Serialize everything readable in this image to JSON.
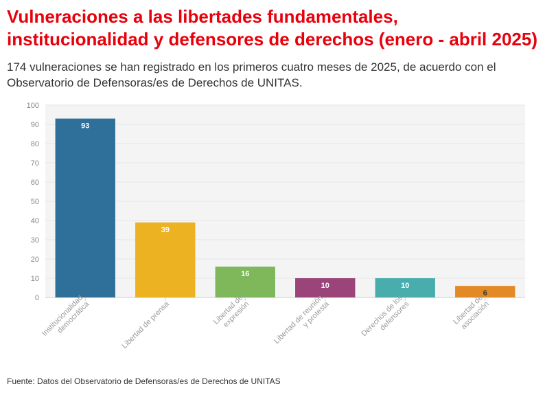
{
  "header": {
    "title": "Vulneraciones a las libertades fundamentales, institucionalidad y defensores de derechos (enero - abril 2025)",
    "subtitle": "174 vulneraciones se han registrado en los primeros cuatro meses de 2025, de acuerdo con el Observatorio de Defensoras/es de Derechos de UNITAS."
  },
  "footer": {
    "source": "Fuente: Datos del Observatorio de Defensoras/es de Derechos de UNITAS"
  },
  "chart_data": {
    "type": "bar",
    "categories": [
      [
        "Institucionalidad",
        "democrática"
      ],
      [
        "Libertad de prensa"
      ],
      [
        "Libertad de",
        "expresión"
      ],
      [
        "Libertad de reunión",
        "y protesta"
      ],
      [
        "Derechos de los",
        "defensores"
      ],
      [
        "Libertad de",
        "asociación"
      ]
    ],
    "values": [
      93,
      39,
      16,
      10,
      10,
      6
    ],
    "colors": [
      "#2e7099",
      "#ecb222",
      "#7eb85a",
      "#9a4479",
      "#4aadad",
      "#e38925"
    ],
    "label_colors": [
      "#ffffff",
      "#ffffff",
      "#ffffff",
      "#ffffff",
      "#ffffff",
      "#333333"
    ],
    "ylim": [
      0,
      100
    ],
    "yticks": [
      0,
      10,
      20,
      30,
      40,
      50,
      60,
      70,
      80,
      90,
      100
    ],
    "grid": true,
    "plot_background": "#f4f4f4",
    "xlabel": "",
    "ylabel": ""
  }
}
